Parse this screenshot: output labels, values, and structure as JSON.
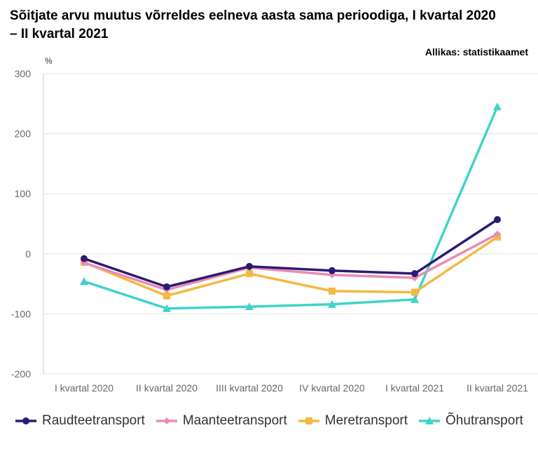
{
  "title": "Sõitjate arvu muutus võrreldes eelneva aasta sama perioodiga, I kvartal 2020 – II kvartal 2021",
  "source": "Allikas: statistikaamet",
  "unit": "%",
  "chart_data": {
    "type": "line",
    "title": "Sõitjate arvu muutus võrreldes eelneva aasta sama perioodiga, I kvartal 2020 – II kvartal 2021",
    "ylabel": "%",
    "xlabel": "",
    "categories": [
      "I kvartal 2020",
      "II kvartal 2020",
      "IIII kvartal 2020",
      "IV kvartal 2020",
      "I kvartal 2021",
      "II kvartal 2021"
    ],
    "ylim": [
      -200,
      300
    ],
    "yticks": [
      300,
      200,
      100,
      0,
      -100,
      -200
    ],
    "ytick_labels": [
      "300",
      "200",
      "100",
      "0",
      "-100",
      "-200"
    ],
    "grid": true,
    "legend_position": "bottom",
    "series": [
      {
        "name": "Raudteetransport",
        "color": "#2e1a72",
        "marker": "circle",
        "values": [
          -8,
          -55,
          -21,
          -28,
          -33,
          57
        ]
      },
      {
        "name": "Maanteetransport",
        "color": "#e98bb5",
        "marker": "diamond",
        "values": [
          -15,
          -60,
          -23,
          -35,
          -40,
          33
        ]
      },
      {
        "name": "Meretransport",
        "color": "#f5b940",
        "marker": "square",
        "values": [
          -14,
          -70,
          -33,
          -62,
          -64,
          28
        ]
      },
      {
        "name": "Õhutransport",
        "color": "#3fd4c8",
        "marker": "triangle",
        "values": [
          -46,
          -91,
          -88,
          -84,
          -76,
          245
        ]
      }
    ]
  }
}
